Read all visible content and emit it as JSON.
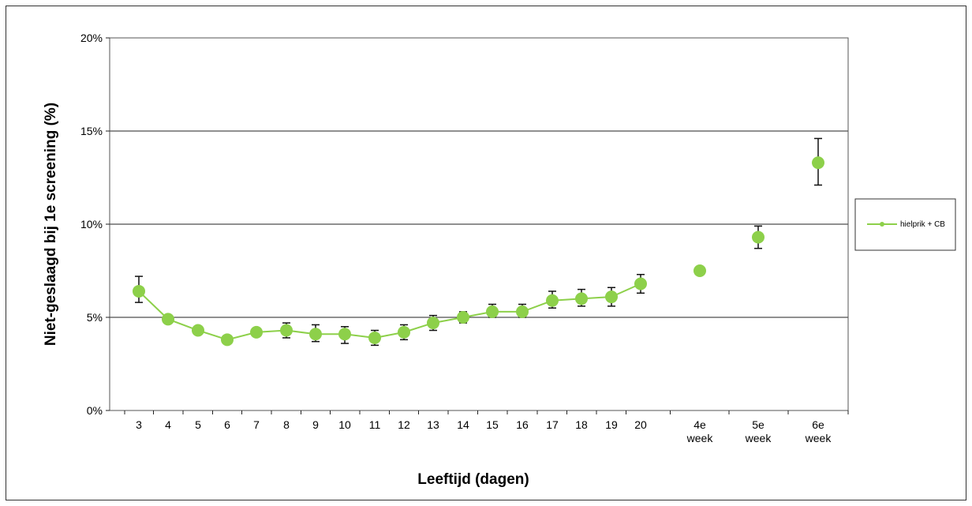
{
  "chart_data": {
    "type": "line",
    "title": "",
    "xlabel": "Leeftijd (dagen)",
    "ylabel": "Niet-geslaagd bij 1e screening (%)",
    "ylim": [
      0,
      20
    ],
    "y_ticks": [
      "0%",
      "5%",
      "10%",
      "15%",
      "20%"
    ],
    "y_tick_values": [
      0,
      5,
      10,
      15,
      20
    ],
    "grid": "horizontal",
    "legend_position": "right",
    "categories": [
      "3",
      "4",
      "5",
      "6",
      "7",
      "8",
      "9",
      "10",
      "11",
      "12",
      "13",
      "14",
      "15",
      "16",
      "17",
      "18",
      "19",
      "20",
      "4e week",
      "5e week",
      "6e week"
    ],
    "series": [
      {
        "name": "hielprik + CB",
        "color": "#8dd04a",
        "values": [
          6.4,
          4.9,
          4.3,
          3.8,
          4.2,
          4.3,
          4.1,
          4.1,
          3.9,
          4.2,
          4.7,
          5.0,
          5.3,
          5.3,
          5.9,
          6.0,
          6.1,
          6.8,
          7.5,
          9.3,
          13.3
        ],
        "err_low": [
          5.8,
          4.7,
          4.2,
          3.7,
          4.0,
          3.9,
          3.7,
          3.6,
          3.5,
          3.8,
          4.3,
          4.7,
          5.0,
          5.0,
          5.5,
          5.6,
          5.6,
          6.3,
          7.3,
          8.7,
          12.1
        ],
        "err_high": [
          7.2,
          5.1,
          4.5,
          3.9,
          4.4,
          4.7,
          4.6,
          4.5,
          4.3,
          4.6,
          5.1,
          5.3,
          5.7,
          5.7,
          6.4,
          6.5,
          6.6,
          7.3,
          7.7,
          9.9,
          14.6
        ],
        "connected_count": 18
      }
    ]
  }
}
